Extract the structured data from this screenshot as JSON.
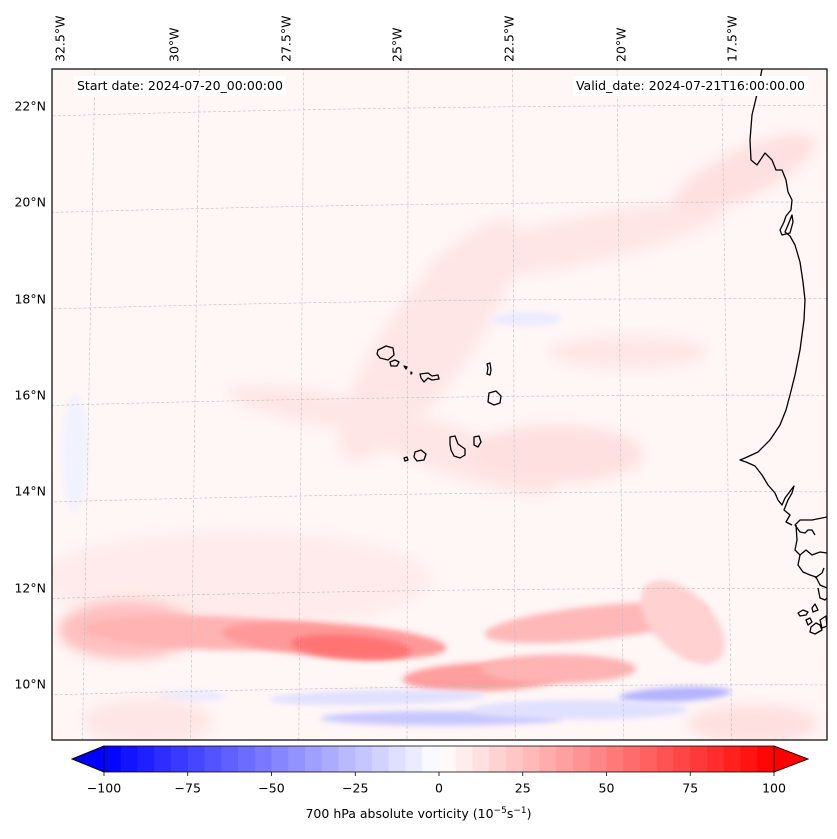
{
  "map": {
    "title_left": "Start date: 2024-07-20_00:00:00",
    "title_right": "Valid_date: 2024-07-21T16:00:00.00",
    "longitude_labels": [
      "32.5°W",
      "30°W",
      "27.5°W",
      "25°W",
      "22.5°W",
      "20°W",
      "17.5°W"
    ],
    "latitude_labels": [
      "22°N",
      "20°N",
      "18°N",
      "16°N",
      "14°N",
      "12°N",
      "10°N"
    ],
    "longitudes": [
      -32.5,
      -30,
      -27.5,
      -25,
      -22.5,
      -20,
      -17.5
    ],
    "latitudes": [
      22,
      20,
      18,
      16,
      14,
      12,
      10
    ],
    "extent": {
      "lon_min": -33.2,
      "lon_max": -15.3,
      "lat_min": 8.9,
      "lat_max": 22.8
    },
    "variable": "700 hPa absolute vorticity",
    "features": [
      "Cape Verde Islands",
      "West African coastline (Mauritania, Senegal, Gambia, Guinea-Bissau)"
    ]
  },
  "colorbar": {
    "label_main": "700 hPa absolute vorticity (10",
    "label_exp1": "−5",
    "label_mid": "s",
    "label_exp2": "−1",
    "label_end": ")",
    "ticks": [
      "−100",
      "−75",
      "−50",
      "−25",
      "0",
      "25",
      "50",
      "75",
      "100"
    ],
    "tick_values": [
      -100,
      -75,
      -50,
      -25,
      0,
      25,
      50,
      75,
      100
    ],
    "min": -100,
    "max": 100,
    "levels": 40,
    "extend": "both",
    "colormap": "bwr",
    "colors": {
      "low": "#0000ff",
      "mid": "#ffffff",
      "high": "#ff0000"
    }
  },
  "chart_data": {
    "type": "heatmap",
    "title": "",
    "left_annotation": "Start date: 2024-07-20_00:00:00",
    "right_annotation": "Valid_date: 2024-07-21T16:00:00.00",
    "xlabel": "",
    "ylabel": "",
    "x_ticks": [
      "32.5°W",
      "30°W",
      "27.5°W",
      "25°W",
      "22.5°W",
      "20°W",
      "17.5°W"
    ],
    "y_ticks": [
      "22°N",
      "20°N",
      "18°N",
      "16°N",
      "14°N",
      "12°N",
      "10°N"
    ],
    "colorbar_label": "700 hPa absolute vorticity (10^-5 s^-1)",
    "colorbar_range": [
      -100,
      100
    ],
    "grid": true,
    "features": [
      {
        "name": "main-positive-band",
        "lon_range": [
          -32.5,
          -20.5
        ],
        "lat_range": [
          10.6,
          11.6
        ],
        "peak_value": 50
      },
      {
        "name": "secondary-positive-band",
        "lon_range": [
          -25,
          -20
        ],
        "lat_range": [
          10.0,
          10.6
        ],
        "peak_value": 40
      },
      {
        "name": "eastern-positive-band",
        "lon_range": [
          -22,
          -17.5
        ],
        "lat_range": [
          11.0,
          11.8
        ],
        "peak_value": 30
      },
      {
        "name": "negative-band-south",
        "lon_range": [
          -28,
          -17.5
        ],
        "lat_range": [
          9.2,
          9.8
        ],
        "peak_value": -20
      },
      {
        "name": "arc-positive-feature",
        "lon_range": [
          -24,
          -16
        ],
        "lat_range": [
          14.5,
          20.5
        ],
        "peak_value": 12
      }
    ]
  }
}
